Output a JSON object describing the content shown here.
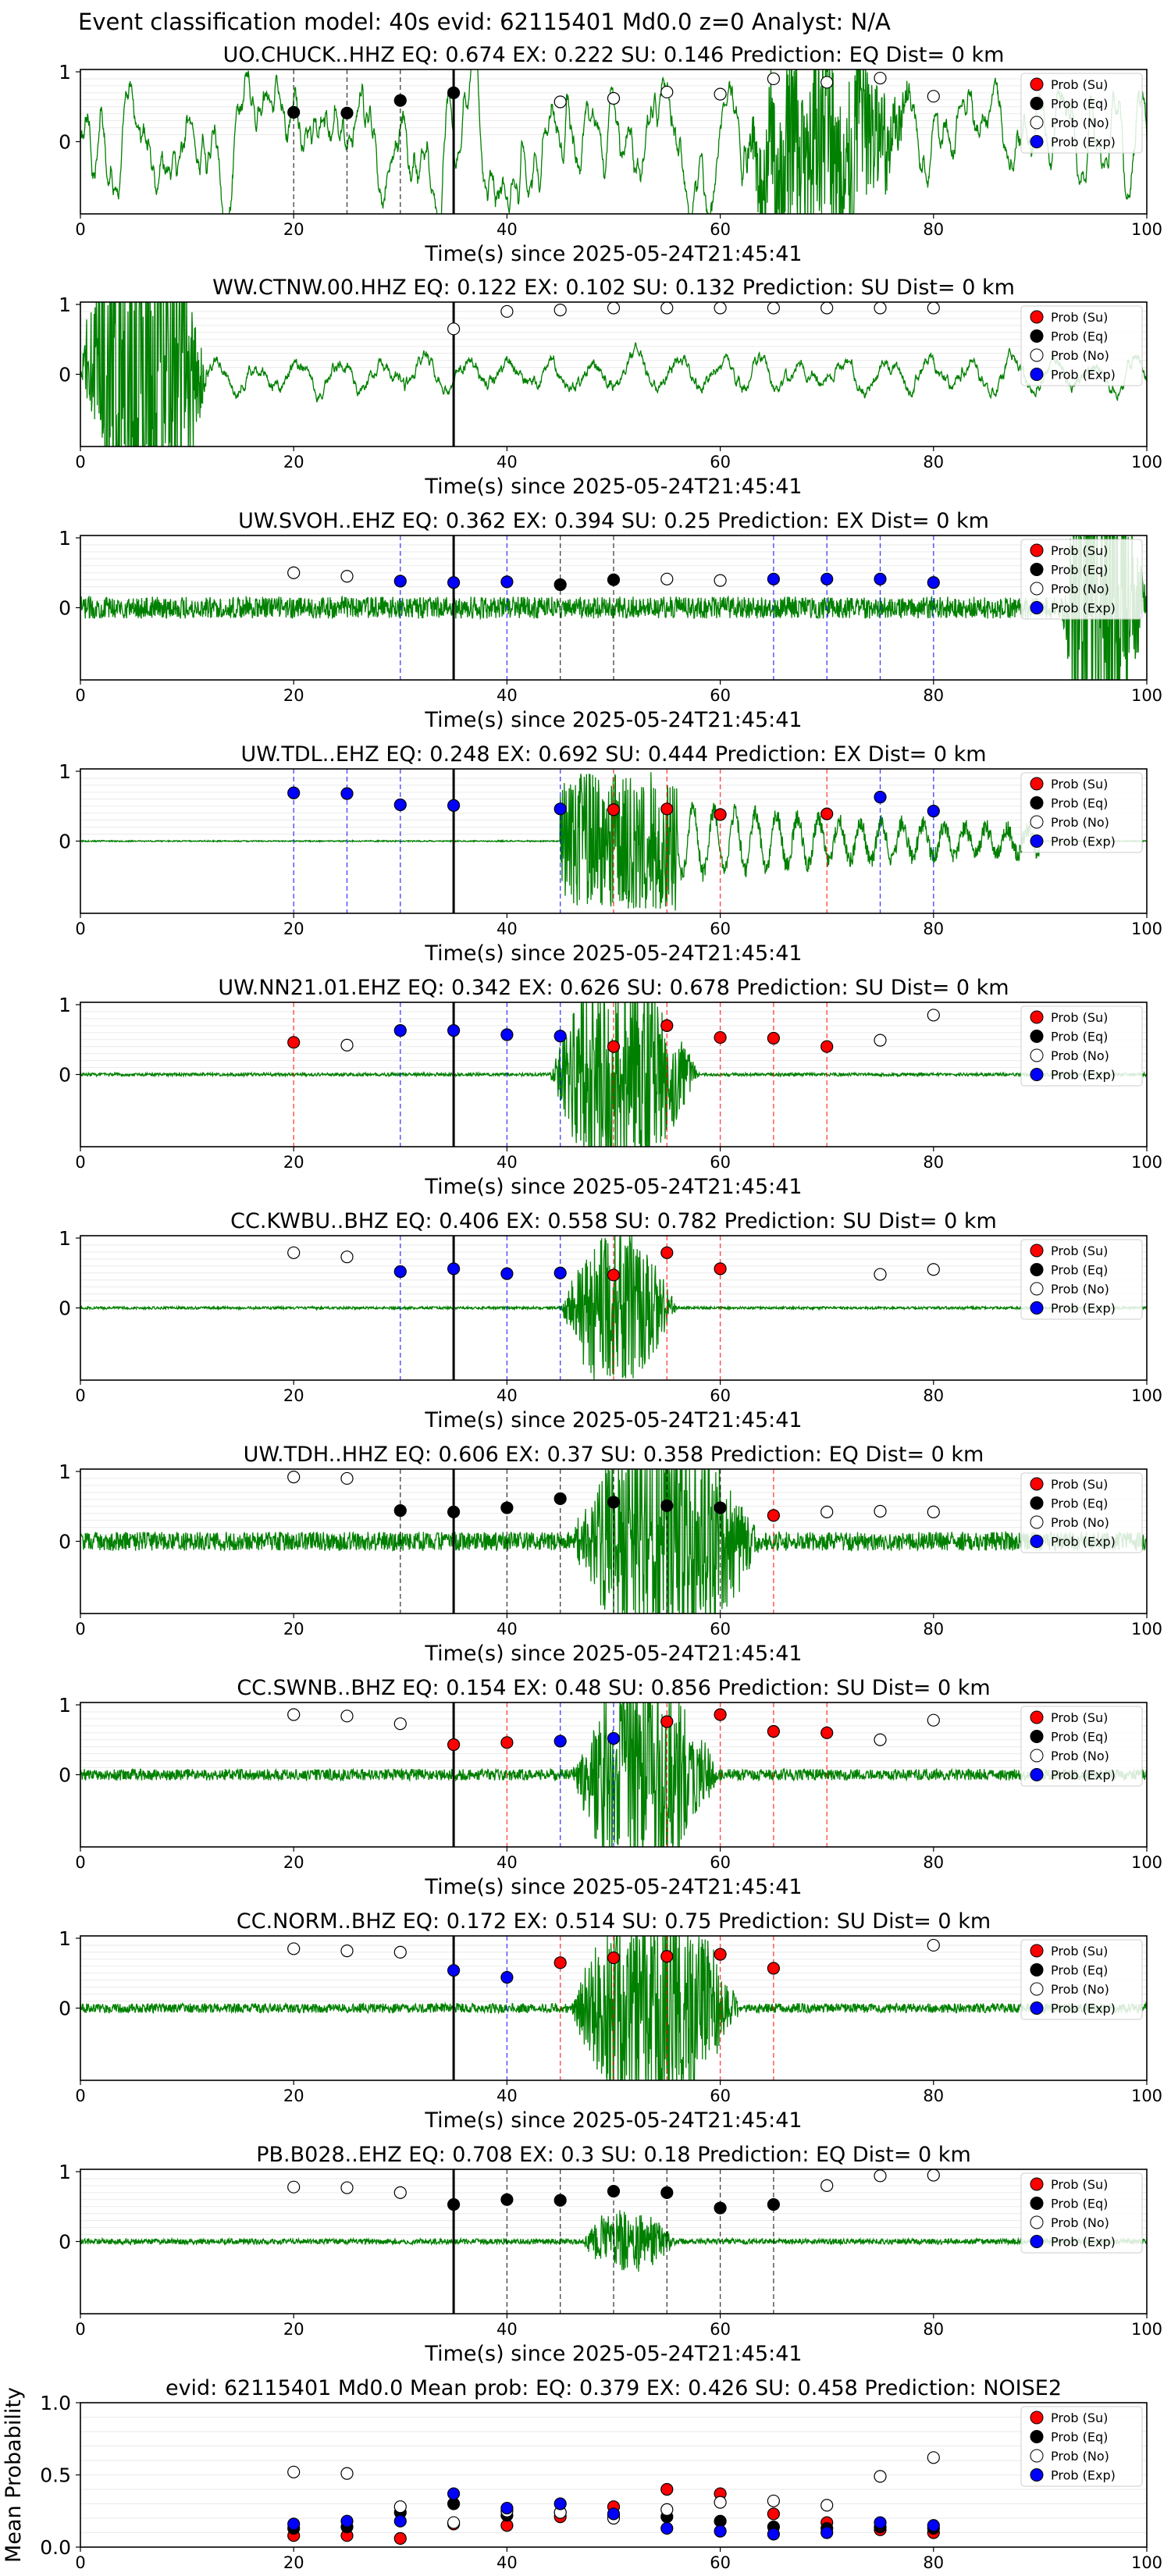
{
  "figure": {
    "suptitle": "Event classification model: 40s evid: 62115401 Md0.0 z=0 Analyst: N/A"
  },
  "legend": {
    "entries": [
      {
        "label": "Prob (Su)",
        "fill": "#ff0000"
      },
      {
        "label": "Prob (Eq)",
        "fill": "#000000"
      },
      {
        "label": "Prob (No)",
        "fill": "#ffffff"
      },
      {
        "label": "Prob (Exp)",
        "fill": "#0000ff"
      }
    ]
  },
  "colors": {
    "waveform": "#008000",
    "su": "#ff0000",
    "eq": "#000000",
    "no": "#ffffff",
    "exp": "#0000ff",
    "pick_line": "#000000"
  },
  "chart_data": [
    {
      "type": "line",
      "title": "UO.CHUCK..HHZ   EQ: 0.674  EX: 0.222  SU: 0.146   Prediction: EQ    Dist= 0 km",
      "xlabel": "Time(s) since 2025-05-24T21:45:41",
      "xlim": [
        0,
        100
      ],
      "ylim": [
        -1,
        1
      ],
      "xticks": [
        0,
        20,
        40,
        60,
        80,
        100
      ],
      "yticks": [
        0,
        1
      ],
      "pick_time": 35,
      "waveform": {
        "amplitude": 0.65,
        "character": "continuous",
        "burst": [
          62,
          78,
          1.4
        ]
      },
      "windows": [
        {
          "t": 20,
          "cls": "eq",
          "y": 0.42
        },
        {
          "t": 25,
          "cls": "eq",
          "y": 0.41
        },
        {
          "t": 30,
          "cls": "eq",
          "y": 0.59
        },
        {
          "t": 35,
          "cls": "eq",
          "y": 0.7
        },
        {
          "t": 45,
          "cls": "no",
          "y": 0.57
        },
        {
          "t": 50,
          "cls": "no",
          "y": 0.62
        },
        {
          "t": 55,
          "cls": "no",
          "y": 0.71
        },
        {
          "t": 60,
          "cls": "no",
          "y": 0.68
        },
        {
          "t": 65,
          "cls": "no",
          "y": 0.9
        },
        {
          "t": 70,
          "cls": "no",
          "y": 0.85
        },
        {
          "t": 75,
          "cls": "no",
          "y": 0.91
        },
        {
          "t": 80,
          "cls": "no",
          "y": 0.65
        }
      ]
    },
    {
      "type": "line",
      "title": "WW.CTNW.00.HHZ   EQ: 0.122  EX: 0.102  SU: 0.132   Prediction: SU    Dist= 0 km",
      "xlabel": "Time(s) since 2025-05-24T21:45:41",
      "xlim": [
        0,
        100
      ],
      "ylim": [
        -1,
        1
      ],
      "xticks": [
        0,
        20,
        40,
        60,
        80,
        100
      ],
      "yticks": [
        0,
        1
      ],
      "pick_time": 35,
      "waveform": {
        "amplitude": 0.3,
        "character": "early-burst",
        "burst": [
          0,
          12,
          3.0
        ]
      },
      "windows": [
        {
          "t": 35,
          "cls": "no",
          "y": 0.65
        },
        {
          "t": 40,
          "cls": "no",
          "y": 0.9
        },
        {
          "t": 45,
          "cls": "no",
          "y": 0.92
        },
        {
          "t": 50,
          "cls": "no",
          "y": 0.95
        },
        {
          "t": 55,
          "cls": "no",
          "y": 0.95
        },
        {
          "t": 60,
          "cls": "no",
          "y": 0.95
        },
        {
          "t": 65,
          "cls": "no",
          "y": 0.95
        },
        {
          "t": 70,
          "cls": "no",
          "y": 0.95
        },
        {
          "t": 75,
          "cls": "no",
          "y": 0.95
        },
        {
          "t": 80,
          "cls": "no",
          "y": 0.95
        }
      ]
    },
    {
      "type": "line",
      "title": "UW.SVOH..EHZ   EQ: 0.362  EX: 0.394  SU: 0.25   Prediction: EX    Dist= 0 km",
      "xlabel": "Time(s) since 2025-05-24T21:45:41",
      "xlim": [
        0,
        100
      ],
      "ylim": [
        -1,
        1
      ],
      "xticks": [
        0,
        20,
        40,
        60,
        80,
        100
      ],
      "yticks": [
        0,
        1
      ],
      "pick_time": 35,
      "waveform": {
        "amplitude": 0.35,
        "character": "noise",
        "burst": [
          92,
          100,
          2.5
        ]
      },
      "windows": [
        {
          "t": 20,
          "cls": "no",
          "y": 0.5
        },
        {
          "t": 25,
          "cls": "no",
          "y": 0.45
        },
        {
          "t": 30,
          "cls": "exp",
          "y": 0.38
        },
        {
          "t": 35,
          "cls": "exp",
          "y": 0.36
        },
        {
          "t": 40,
          "cls": "exp",
          "y": 0.37
        },
        {
          "t": 45,
          "cls": "eq",
          "y": 0.33
        },
        {
          "t": 50,
          "cls": "eq",
          "y": 0.4
        },
        {
          "t": 55,
          "cls": "no",
          "y": 0.41
        },
        {
          "t": 60,
          "cls": "no",
          "y": 0.39
        },
        {
          "t": 65,
          "cls": "exp",
          "y": 0.41
        },
        {
          "t": 70,
          "cls": "exp",
          "y": 0.41
        },
        {
          "t": 75,
          "cls": "exp",
          "y": 0.41
        },
        {
          "t": 80,
          "cls": "exp",
          "y": 0.36
        }
      ]
    },
    {
      "type": "line",
      "title": "UW.TDL..EHZ   EQ: 0.248  EX: 0.692  SU: 0.444   Prediction: EX    Dist= 0 km",
      "xlabel": "Time(s) since 2025-05-24T21:45:41",
      "xlim": [
        0,
        100
      ],
      "ylim": [
        -1,
        1
      ],
      "xticks": [
        0,
        20,
        40,
        60,
        80,
        100
      ],
      "yticks": [
        0,
        1
      ],
      "pick_time": 35,
      "waveform": {
        "amplitude": 0.02,
        "character": "spiky",
        "burst": [
          45,
          56,
          1.0
        ]
      },
      "windows": [
        {
          "t": 20,
          "cls": "exp",
          "y": 0.69
        },
        {
          "t": 25,
          "cls": "exp",
          "y": 0.68
        },
        {
          "t": 30,
          "cls": "exp",
          "y": 0.52
        },
        {
          "t": 35,
          "cls": "exp",
          "y": 0.51
        },
        {
          "t": 45,
          "cls": "exp",
          "y": 0.46
        },
        {
          "t": 50,
          "cls": "su",
          "y": 0.45
        },
        {
          "t": 55,
          "cls": "su",
          "y": 0.46
        },
        {
          "t": 60,
          "cls": "su",
          "y": 0.38
        },
        {
          "t": 70,
          "cls": "su",
          "y": 0.39
        },
        {
          "t": 75,
          "cls": "exp",
          "y": 0.63
        },
        {
          "t": 80,
          "cls": "exp",
          "y": 0.43
        }
      ]
    },
    {
      "type": "line",
      "title": "UW.NN21.01.EHZ   EQ: 0.342  EX: 0.626  SU: 0.678   Prediction: SU    Dist= 0 km",
      "xlabel": "Time(s) since 2025-05-24T21:45:41",
      "xlim": [
        0,
        100
      ],
      "ylim": [
        -1,
        1
      ],
      "xticks": [
        0,
        20,
        40,
        60,
        80,
        100
      ],
      "yticks": [
        0,
        1
      ],
      "pick_time": 35,
      "waveform": {
        "amplitude": 0.05,
        "character": "event",
        "burst": [
          44,
          58,
          1.5
        ]
      },
      "windows": [
        {
          "t": 20,
          "cls": "su",
          "y": 0.46
        },
        {
          "t": 25,
          "cls": "no",
          "y": 0.42
        },
        {
          "t": 30,
          "cls": "exp",
          "y": 0.63
        },
        {
          "t": 35,
          "cls": "exp",
          "y": 0.63
        },
        {
          "t": 40,
          "cls": "exp",
          "y": 0.57
        },
        {
          "t": 45,
          "cls": "exp",
          "y": 0.55
        },
        {
          "t": 50,
          "cls": "su",
          "y": 0.4
        },
        {
          "t": 55,
          "cls": "su",
          "y": 0.7
        },
        {
          "t": 60,
          "cls": "su",
          "y": 0.53
        },
        {
          "t": 65,
          "cls": "su",
          "y": 0.52
        },
        {
          "t": 70,
          "cls": "su",
          "y": 0.4
        },
        {
          "t": 75,
          "cls": "no",
          "y": 0.49
        },
        {
          "t": 80,
          "cls": "no",
          "y": 0.85
        }
      ]
    },
    {
      "type": "line",
      "title": "CC.KWBU..BHZ   EQ: 0.406  EX: 0.558  SU: 0.782   Prediction: SU    Dist= 0 km",
      "xlabel": "Time(s) since 2025-05-24T21:45:41",
      "xlim": [
        0,
        100
      ],
      "ylim": [
        -1,
        1
      ],
      "xticks": [
        0,
        20,
        40,
        60,
        80,
        100
      ],
      "yticks": [
        0,
        1
      ],
      "pick_time": 35,
      "waveform": {
        "amplitude": 0.04,
        "character": "event",
        "burst": [
          45,
          56,
          1.1
        ]
      },
      "windows": [
        {
          "t": 20,
          "cls": "no",
          "y": 0.79
        },
        {
          "t": 25,
          "cls": "no",
          "y": 0.73
        },
        {
          "t": 30,
          "cls": "exp",
          "y": 0.52
        },
        {
          "t": 35,
          "cls": "exp",
          "y": 0.56
        },
        {
          "t": 40,
          "cls": "exp",
          "y": 0.49
        },
        {
          "t": 45,
          "cls": "exp",
          "y": 0.5
        },
        {
          "t": 50,
          "cls": "su",
          "y": 0.47
        },
        {
          "t": 55,
          "cls": "su",
          "y": 0.79
        },
        {
          "t": 60,
          "cls": "su",
          "y": 0.56
        },
        {
          "t": 75,
          "cls": "no",
          "y": 0.48
        },
        {
          "t": 80,
          "cls": "no",
          "y": 0.55
        }
      ]
    },
    {
      "type": "line",
      "title": "UW.TDH..HHZ   EQ: 0.606  EX: 0.37  SU: 0.358   Prediction: EQ    Dist= 0 km",
      "xlabel": "Time(s) since 2025-05-24T21:45:41",
      "xlim": [
        0,
        100
      ],
      "ylim": [
        -1,
        1
      ],
      "xticks": [
        0,
        20,
        40,
        60,
        80,
        100
      ],
      "yticks": [
        0,
        1
      ],
      "pick_time": 35,
      "waveform": {
        "amplitude": 0.3,
        "character": "noise",
        "burst": [
          46,
          64,
          1.6
        ]
      },
      "windows": [
        {
          "t": 20,
          "cls": "no",
          "y": 0.92
        },
        {
          "t": 25,
          "cls": "no",
          "y": 0.9
        },
        {
          "t": 30,
          "cls": "eq",
          "y": 0.44
        },
        {
          "t": 35,
          "cls": "eq",
          "y": 0.42
        },
        {
          "t": 40,
          "cls": "eq",
          "y": 0.48
        },
        {
          "t": 45,
          "cls": "eq",
          "y": 0.61
        },
        {
          "t": 50,
          "cls": "eq",
          "y": 0.56
        },
        {
          "t": 55,
          "cls": "eq",
          "y": 0.51
        },
        {
          "t": 60,
          "cls": "eq",
          "y": 0.48
        },
        {
          "t": 65,
          "cls": "su",
          "y": 0.37
        },
        {
          "t": 70,
          "cls": "no",
          "y": 0.42
        },
        {
          "t": 75,
          "cls": "no",
          "y": 0.43
        },
        {
          "t": 80,
          "cls": "no",
          "y": 0.42
        }
      ]
    },
    {
      "type": "line",
      "title": "CC.SWNB..BHZ   EQ: 0.154  EX: 0.48  SU: 0.856   Prediction: SU    Dist= 0 km",
      "xlabel": "Time(s) since 2025-05-24T21:45:41",
      "xlim": [
        0,
        100
      ],
      "ylim": [
        -1,
        1
      ],
      "xticks": [
        0,
        20,
        40,
        60,
        80,
        100
      ],
      "yticks": [
        0,
        1
      ],
      "pick_time": 35,
      "waveform": {
        "amplitude": 0.18,
        "character": "noise",
        "burst": [
          46,
          60,
          1.4
        ]
      },
      "windows": [
        {
          "t": 20,
          "cls": "no",
          "y": 0.86
        },
        {
          "t": 25,
          "cls": "no",
          "y": 0.84
        },
        {
          "t": 30,
          "cls": "no",
          "y": 0.73
        },
        {
          "t": 35,
          "cls": "su",
          "y": 0.43
        },
        {
          "t": 40,
          "cls": "su",
          "y": 0.46
        },
        {
          "t": 45,
          "cls": "exp",
          "y": 0.48
        },
        {
          "t": 50,
          "cls": "exp",
          "y": 0.52
        },
        {
          "t": 55,
          "cls": "su",
          "y": 0.76
        },
        {
          "t": 60,
          "cls": "su",
          "y": 0.86
        },
        {
          "t": 65,
          "cls": "su",
          "y": 0.62
        },
        {
          "t": 70,
          "cls": "su",
          "y": 0.6
        },
        {
          "t": 75,
          "cls": "no",
          "y": 0.5
        },
        {
          "t": 80,
          "cls": "no",
          "y": 0.78
        }
      ]
    },
    {
      "type": "line",
      "title": "CC.NORM..BHZ   EQ: 0.172  EX: 0.514  SU: 0.75   Prediction: SU    Dist= 0 km",
      "xlabel": "Time(s) since 2025-05-24T21:45:41",
      "xlim": [
        0,
        100
      ],
      "ylim": [
        -1,
        1
      ],
      "xticks": [
        0,
        20,
        40,
        60,
        80,
        100
      ],
      "yticks": [
        0,
        1
      ],
      "pick_time": 35,
      "waveform": {
        "amplitude": 0.15,
        "character": "noise",
        "burst": [
          46,
          62,
          1.6
        ]
      },
      "windows": [
        {
          "t": 20,
          "cls": "no",
          "y": 0.85
        },
        {
          "t": 25,
          "cls": "no",
          "y": 0.82
        },
        {
          "t": 30,
          "cls": "no",
          "y": 0.8
        },
        {
          "t": 35,
          "cls": "exp",
          "y": 0.54
        },
        {
          "t": 40,
          "cls": "exp",
          "y": 0.44
        },
        {
          "t": 45,
          "cls": "su",
          "y": 0.65
        },
        {
          "t": 50,
          "cls": "su",
          "y": 0.72
        },
        {
          "t": 55,
          "cls": "su",
          "y": 0.74
        },
        {
          "t": 60,
          "cls": "su",
          "y": 0.77
        },
        {
          "t": 65,
          "cls": "su",
          "y": 0.57
        },
        {
          "t": 80,
          "cls": "no",
          "y": 0.9
        }
      ]
    },
    {
      "type": "line",
      "title": "PB.B028..EHZ   EQ: 0.708  EX: 0.3  SU: 0.18   Prediction: EQ    Dist= 0 km",
      "xlabel": "Time(s) since 2025-05-24T21:45:41",
      "xlim": [
        0,
        100
      ],
      "ylim": [
        -1,
        1
      ],
      "xticks": [
        0,
        20,
        40,
        60,
        80,
        100
      ],
      "yticks": [
        0,
        1
      ],
      "pick_time": 35,
      "waveform": {
        "amplitude": 0.09,
        "character": "noise",
        "burst": [
          47,
          56,
          0.45
        ]
      },
      "windows": [
        {
          "t": 20,
          "cls": "no",
          "y": 0.78
        },
        {
          "t": 25,
          "cls": "no",
          "y": 0.77
        },
        {
          "t": 30,
          "cls": "no",
          "y": 0.7
        },
        {
          "t": 35,
          "cls": "eq",
          "y": 0.53
        },
        {
          "t": 40,
          "cls": "eq",
          "y": 0.6
        },
        {
          "t": 45,
          "cls": "eq",
          "y": 0.59
        },
        {
          "t": 50,
          "cls": "eq",
          "y": 0.72
        },
        {
          "t": 55,
          "cls": "eq",
          "y": 0.7
        },
        {
          "t": 60,
          "cls": "eq",
          "y": 0.48
        },
        {
          "t": 65,
          "cls": "eq",
          "y": 0.53
        },
        {
          "t": 70,
          "cls": "no",
          "y": 0.8
        },
        {
          "t": 75,
          "cls": "no",
          "y": 0.94
        },
        {
          "t": 80,
          "cls": "no",
          "y": 0.95
        }
      ]
    },
    {
      "type": "scatter",
      "title": "evid: 62115401  Md0.0   Mean prob:   EQ: 0.379  EX: 0.426  SU: 0.458   Prediction: NOISE2",
      "ylabel": "Mean Probability",
      "xlim": [
        0,
        100
      ],
      "ylim": [
        0,
        1
      ],
      "xticks": [
        0,
        20,
        40,
        60,
        80,
        100
      ],
      "yticks": [
        0.0,
        0.5,
        1.0
      ],
      "ytick_labels": [
        "0.0",
        "0.5",
        "1.0"
      ],
      "x": [
        20,
        25,
        30,
        35,
        40,
        45,
        50,
        55,
        60,
        65,
        70,
        75,
        80
      ],
      "series": [
        {
          "name": "Prob (Su)",
          "cls": "su",
          "values": [
            0.08,
            0.08,
            0.06,
            0.16,
            0.15,
            0.21,
            0.28,
            0.4,
            0.37,
            0.23,
            0.17,
            0.12,
            0.1
          ]
        },
        {
          "name": "Prob (Eq)",
          "cls": "eq",
          "values": [
            0.13,
            0.14,
            0.24,
            0.3,
            0.22,
            0.24,
            0.22,
            0.21,
            0.18,
            0.14,
            0.13,
            0.14,
            0.13
          ]
        },
        {
          "name": "Prob (No)",
          "cls": "no",
          "values": [
            0.52,
            0.51,
            0.28,
            0.17,
            0.25,
            0.24,
            0.2,
            0.26,
            0.31,
            0.32,
            0.29,
            0.49,
            0.62
          ]
        },
        {
          "name": "Prob (Exp)",
          "cls": "exp",
          "values": [
            0.16,
            0.18,
            0.18,
            0.37,
            0.27,
            0.3,
            0.23,
            0.13,
            0.11,
            0.09,
            0.1,
            0.17,
            0.15
          ]
        }
      ]
    }
  ]
}
